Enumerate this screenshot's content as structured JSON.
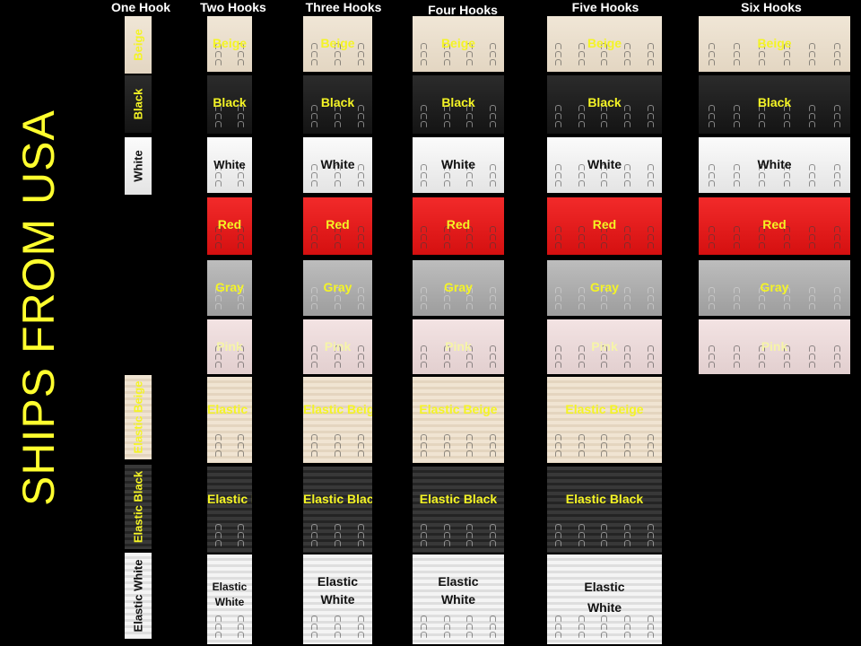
{
  "banner": "SHIPS FROM USA",
  "columns": [
    {
      "title": "One Hook",
      "hooks": 1
    },
    {
      "title": "Two Hooks",
      "hooks": 2
    },
    {
      "title": "Three Hooks",
      "hooks": 3
    },
    {
      "title": "Four Hooks",
      "hooks": 4
    },
    {
      "title": "Five Hooks",
      "hooks": 5
    },
    {
      "title": "Six Hooks",
      "hooks": 6
    }
  ],
  "labels": {
    "beige": "Beige",
    "black": "Black",
    "white": "White",
    "red": "Red",
    "gray": "Gray",
    "pink": "Pink",
    "elastic_beige": "Elastic Beige",
    "elastic_black": "Elastic Black",
    "elastic_white": "Elastic White",
    "elastic": "Elastic",
    "white_word": "White"
  },
  "colors": {
    "banner": "#ffff2e",
    "label_yellow": "#f4f425",
    "background": "#000000"
  }
}
